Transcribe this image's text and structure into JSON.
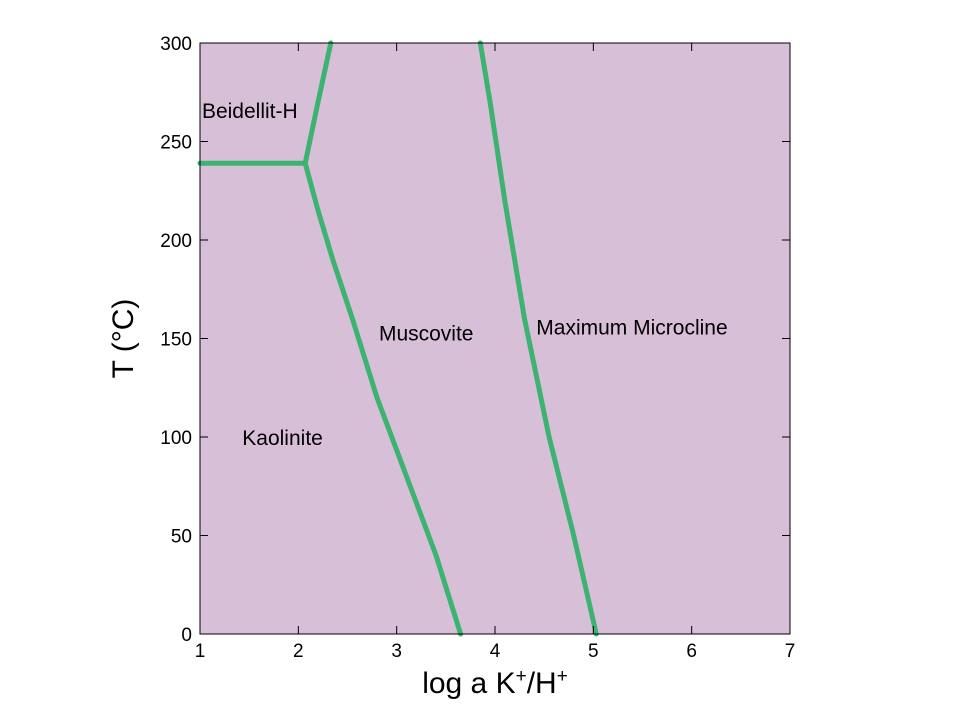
{
  "chart_data": {
    "type": "line",
    "title": "",
    "xlabel": {
      "parts": [
        {
          "text": "log a K",
          "sup": false
        },
        {
          "text": "+",
          "sup": true
        },
        {
          "text": "/H",
          "sup": false
        },
        {
          "text": "+",
          "sup": true
        }
      ]
    },
    "ylabel": "T (°C)",
    "xlim": [
      1,
      7
    ],
    "ylim": [
      0,
      300
    ],
    "xticks": [
      "1",
      "2",
      "3",
      "4",
      "5",
      "6",
      "7"
    ],
    "yticks": [
      "0",
      "50",
      "100",
      "150",
      "200",
      "250",
      "300"
    ],
    "grid": false,
    "background_color": "#d8bfd8",
    "line_color": "#3cb371",
    "series": [
      {
        "x": [
          1.0,
          2.07
        ],
        "y": [
          239,
          239
        ]
      },
      {
        "x": [
          3.65,
          3.4,
          3.1,
          2.8,
          2.55,
          2.35,
          2.2,
          2.07
        ],
        "y": [
          0,
          40,
          80,
          120,
          160,
          190,
          215,
          239
        ]
      },
      {
        "x": [
          2.07,
          2.2,
          2.33
        ],
        "y": [
          239,
          270,
          300
        ]
      },
      {
        "x": [
          5.03,
          4.8,
          4.55,
          4.3,
          4.1,
          3.95,
          3.85
        ],
        "y": [
          0,
          50,
          100,
          160,
          220,
          270,
          300
        ]
      }
    ],
    "annotations": [
      {
        "text": "Beidellit-H",
        "x": 1.02,
        "y": 262
      },
      {
        "text": "Kaolinite",
        "x": 1.43,
        "y": 96
      },
      {
        "text": "Muscovite",
        "x": 2.82,
        "y": 149
      },
      {
        "text": "Maximum Microcline",
        "x": 4.42,
        "y": 152
      }
    ]
  }
}
